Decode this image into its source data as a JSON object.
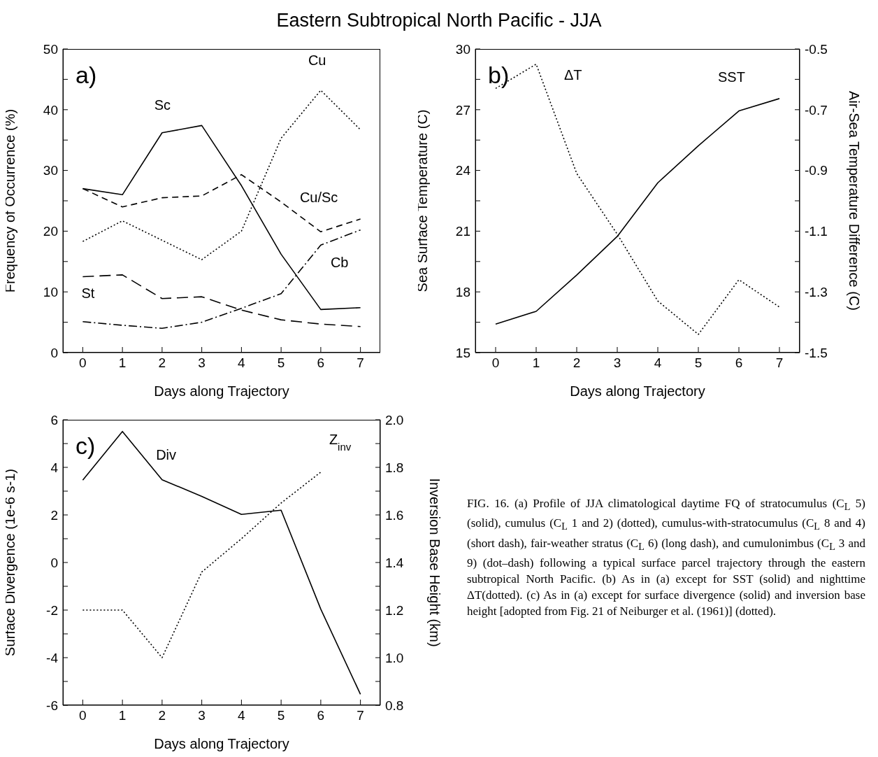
{
  "chart_data": [
    {
      "type": "line",
      "title": "Eastern Subtropical North Pacific - JJA",
      "xlabel": "Days along Trajectory",
      "ylabel": "Frequency of Occurrence (%)",
      "annotations": [
        "a)"
      ],
      "x": [
        0,
        1,
        2,
        3,
        4,
        5,
        6,
        7
      ],
      "xlim": [
        -0.5,
        7.5
      ],
      "xticks": [
        0,
        1,
        2,
        3,
        4,
        5,
        6,
        7
      ],
      "ylim": [
        0,
        50
      ],
      "yticks": [
        0,
        {
          "value": 5,
          "label": null
        },
        10,
        {
          "value": 15,
          "label": null
        },
        20,
        {
          "value": 25,
          "label": null
        },
        30,
        {
          "value": 35,
          "label": null
        },
        40,
        {
          "value": 45,
          "label": null
        },
        50
      ],
      "grid": false,
      "legend": false,
      "marker": "none",
      "series": [
        {
          "name": "Sc",
          "color": "#000000",
          "line_style": "solid",
          "values": [
            27,
            26,
            36.2,
            37.4,
            27.5,
            16.2,
            7.1,
            7.4
          ]
        },
        {
          "name": "Cu",
          "color": "#000000",
          "line_style": "dotted",
          "values": [
            18.3,
            21.7,
            18.5,
            15.3,
            20,
            35.3,
            43.2,
            36.7
          ]
        },
        {
          "name": "Cu/Sc",
          "color": "#000000",
          "line_style": "dashed",
          "values": [
            27,
            24,
            25.5,
            25.8,
            29.3,
            24.8,
            19.9,
            22
          ]
        },
        {
          "name": "St",
          "color": "#000000",
          "line_style": "longdash",
          "values": [
            12.5,
            12.8,
            8.9,
            9.2,
            7,
            5.4,
            4.7,
            4.3
          ]
        },
        {
          "name": "Cb",
          "color": "#000000",
          "line_style": "dashdot",
          "values": [
            5.1,
            4.5,
            4,
            5,
            7.3,
            9.7,
            17.7,
            20.2
          ]
        }
      ]
    },
    {
      "type": "line",
      "xlabel": "Days along Trajectory",
      "ylabel": "Sea Surface Temperature (C)",
      "y2label": "Air-Sea Temperature Difference (C)",
      "annotations": [
        "b)"
      ],
      "x": [
        0,
        1,
        2,
        3,
        4,
        5,
        6,
        7
      ],
      "xlim": [
        -0.5,
        7.5
      ],
      "xticks": [
        0,
        1,
        2,
        3,
        4,
        5,
        6,
        7
      ],
      "ylim": [
        15,
        30
      ],
      "yticks": [
        15,
        {
          "value": 16.5,
          "label": null
        },
        18,
        {
          "value": 19.5,
          "label": null
        },
        21,
        {
          "value": 22.5,
          "label": null
        },
        24,
        {
          "value": 25.5,
          "label": null
        },
        27,
        {
          "value": 28.5,
          "label": null
        },
        30
      ],
      "y2lim": [
        -1.5,
        -0.5
      ],
      "y2ticks": [
        -1.5,
        {
          "value": -1.4,
          "label": null
        },
        -1.3,
        {
          "value": -1.2,
          "label": null
        },
        -1.1,
        {
          "value": -1,
          "label": null
        },
        -0.9,
        {
          "value": -0.8,
          "label": null
        },
        -0.7,
        {
          "value": -0.6,
          "label": null
        },
        -0.5
      ],
      "grid": false,
      "legend": false,
      "marker": "none",
      "series": [
        {
          "name": "SST",
          "color": "#000000",
          "line_style": "solid",
          "values": [
            16.41,
            17.04,
            18.83,
            20.74,
            23.39,
            25.22,
            26.94,
            27.55
          ]
        },
        {
          "name": "ΔT",
          "color": "#000000",
          "line_style": "dotted",
          "axis": "y2",
          "values": [
            -0.63,
            -0.55,
            -0.91,
            -1.11,
            -1.33,
            -1.44,
            -1.26,
            -1.35
          ]
        }
      ]
    },
    {
      "type": "line",
      "xlabel": "Days along Trajectory",
      "ylabel": "Surface Divergence (1e-6 s-1)",
      "y2label": "Inversion Base Height (km)",
      "annotations": [
        "c)",
        "FIG. 16. (a) Profile of JJA climatological daytime FQ of stratocumulus (C$_{L}$ 5) (solid), cumulus (C$_{L}$ 1 and 2) (dotted), cumulus-with-stratocumulus (C$_{L}$ 8 and 4) (short dash), fair-weather stratus (C$_{L}$ 6) (long dash), and cumulonimbus (C$_{L}$ 3 and 9) (dot–dash) following a typical surface parcel trajectory through the eastern subtropical North Pacific. (b) As in (a) except for SST (solid) and nighttime ΔT(dotted). (c) As in (a) except for surface divergence (solid) and inversion base height [adopted from Fig. 21 of Neiburger et al. (1961)] (dotted)."
      ],
      "x": [
        0,
        1,
        2,
        3,
        4,
        5,
        6,
        7
      ],
      "xlim": [
        -0.5,
        7.5
      ],
      "xticks": [
        0,
        1,
        2,
        3,
        4,
        5,
        6,
        7
      ],
      "ylim": [
        -6,
        6
      ],
      "yticks": [
        -6,
        {
          "value": -5,
          "label": null
        },
        -4,
        {
          "value": -3,
          "label": null
        },
        -2,
        {
          "value": -1,
          "label": null
        },
        0,
        {
          "value": 1,
          "label": null
        },
        2,
        {
          "value": 3,
          "label": null
        },
        4,
        {
          "value": 5,
          "label": null
        },
        6
      ],
      "y2lim": [
        0.8,
        2
      ],
      "y2ticks": [
        0.8,
        {
          "value": 0.9,
          "label": null
        },
        {
          "value": 1,
          "label": "1.0"
        },
        {
          "value": 1.1,
          "label": null
        },
        1.2,
        {
          "value": 1.3,
          "label": null
        },
        1.4,
        {
          "value": 1.5,
          "label": null
        },
        1.6,
        {
          "value": 1.7,
          "label": null
        },
        1.8,
        {
          "value": 1.9,
          "label": null
        },
        {
          "value": 2,
          "label": "2.0"
        }
      ],
      "grid": false,
      "legend": false,
      "marker": "none",
      "series": [
        {
          "name": "Div",
          "color": "#000000",
          "line_style": "solid",
          "values": [
            3.46,
            5.51,
            3.48,
            2.78,
            2.02,
            2.2,
            -1.96,
            -5.54
          ]
        },
        {
          "name": "Z$_{inv}$",
          "color": "#000000",
          "line_style": "dotted",
          "axis": "y2",
          "values": [
            1.2,
            1.2,
            1.0,
            1.36,
            1.5,
            1.65,
            1.78,
            null
          ]
        }
      ]
    }
  ]
}
